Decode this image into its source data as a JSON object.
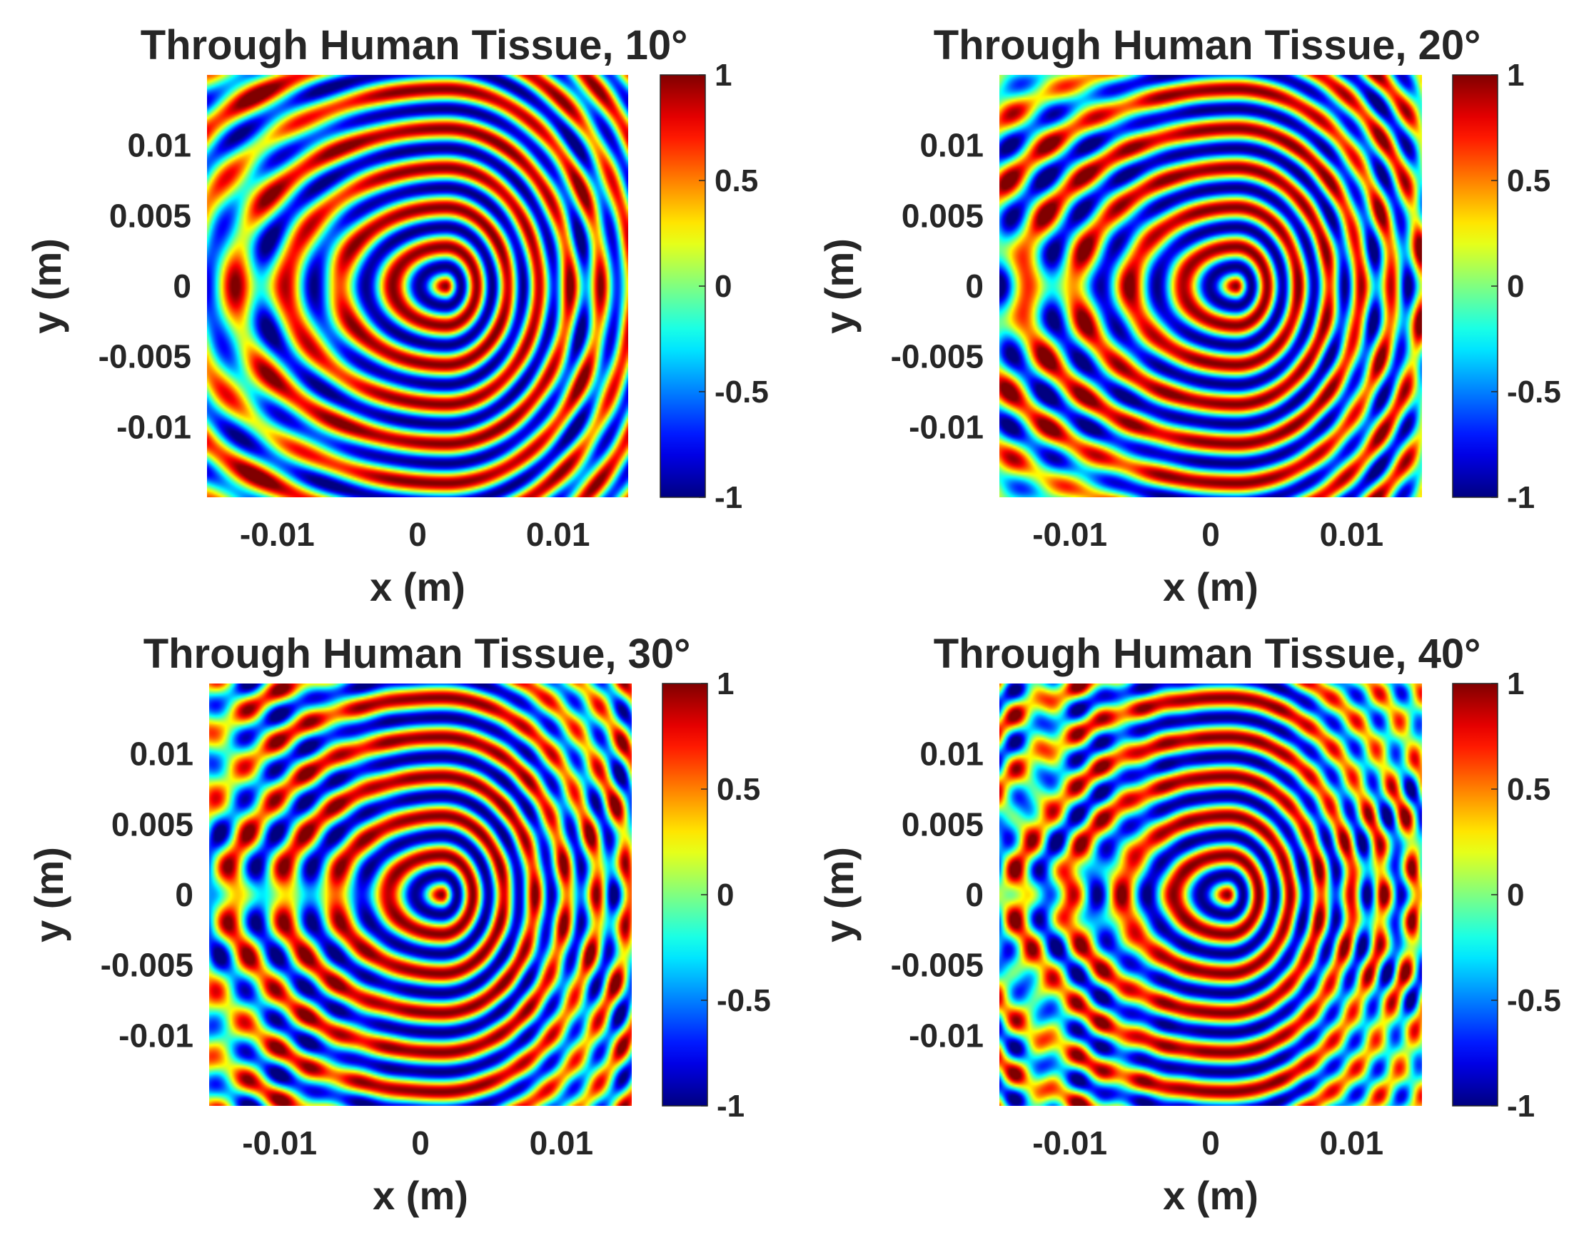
{
  "chart_data": [
    {
      "type": "heatmap",
      "title": "Through Human Tissue, 10°",
      "xlabel": "x (m)",
      "ylabel": "y (m)",
      "angle_deg": 10,
      "xlim": [
        -0.015,
        0.015
      ],
      "ylim": [
        -0.015,
        0.015
      ],
      "xticks": [
        -0.01,
        0,
        0.01
      ],
      "xtick_labels": [
        "-0.01",
        "0",
        "0.01"
      ],
      "yticks": [
        0.01,
        0.005,
        0,
        -0.005,
        -0.01
      ],
      "ytick_labels": [
        "0.01",
        "0.005",
        "0",
        "-0.005",
        "-0.01"
      ],
      "colorbar": {
        "range": [
          -1,
          1
        ],
        "ticks": [
          1,
          0.5,
          0,
          -0.5,
          -1
        ],
        "tick_labels": [
          "1",
          "0.5",
          "0",
          "-0.5",
          "-1"
        ],
        "colormap": "jet"
      },
      "focus_center": [
        0.002,
        0
      ]
    },
    {
      "type": "heatmap",
      "title": "Through Human Tissue, 20°",
      "xlabel": "x (m)",
      "ylabel": "y (m)",
      "angle_deg": 20,
      "xlim": [
        -0.015,
        0.015
      ],
      "ylim": [
        -0.015,
        0.015
      ],
      "xticks": [
        -0.01,
        0,
        0.01
      ],
      "xtick_labels": [
        "-0.01",
        "0",
        "0.01"
      ],
      "yticks": [
        0.01,
        0.005,
        0,
        -0.005,
        -0.01
      ],
      "ytick_labels": [
        "0.01",
        "0.005",
        "0",
        "-0.005",
        "-0.01"
      ],
      "colorbar": {
        "range": [
          -1,
          1
        ],
        "ticks": [
          1,
          0.5,
          0,
          -0.5,
          -1
        ],
        "tick_labels": [
          "1",
          "0.5",
          "0",
          "-0.5",
          "-1"
        ],
        "colormap": "jet"
      },
      "focus_center": [
        0.0018,
        0
      ]
    },
    {
      "type": "heatmap",
      "title": "Through Human Tissue, 30°",
      "xlabel": "x (m)",
      "ylabel": "y (m)",
      "angle_deg": 30,
      "xlim": [
        -0.015,
        0.015
      ],
      "ylim": [
        -0.015,
        0.015
      ],
      "xticks": [
        -0.01,
        0,
        0.01
      ],
      "xtick_labels": [
        "-0.01",
        "0",
        "0.01"
      ],
      "yticks": [
        0.01,
        0.005,
        0,
        -0.005,
        -0.01
      ],
      "ytick_labels": [
        "0.01",
        "0.005",
        "0",
        "-0.005",
        "-0.01"
      ],
      "colorbar": {
        "range": [
          -1,
          1
        ],
        "ticks": [
          1,
          0.5,
          0,
          -0.5,
          -1
        ],
        "tick_labels": [
          "1",
          "0.5",
          "0",
          "-0.5",
          "-1"
        ],
        "colormap": "jet"
      },
      "focus_center": [
        0.0015,
        0
      ]
    },
    {
      "type": "heatmap",
      "title": "Through Human Tissue, 40°",
      "xlabel": "x (m)",
      "ylabel": "y (m)",
      "angle_deg": 40,
      "xlim": [
        -0.015,
        0.015
      ],
      "ylim": [
        -0.015,
        0.015
      ],
      "xticks": [
        -0.01,
        0,
        0.01
      ],
      "xtick_labels": [
        "-0.01",
        "0",
        "0.01"
      ],
      "yticks": [
        0.01,
        0.005,
        0,
        -0.005,
        -0.01
      ],
      "ytick_labels": [
        "0.01",
        "0.005",
        "0",
        "-0.005",
        "-0.01"
      ],
      "colorbar": {
        "range": [
          -1,
          1
        ],
        "ticks": [
          1,
          0.5,
          0,
          -0.5,
          -1
        ],
        "tick_labels": [
          "1",
          "0.5",
          "0",
          "-0.5",
          "-1"
        ],
        "colormap": "jet"
      },
      "focus_center": [
        0.0012,
        0
      ]
    }
  ]
}
